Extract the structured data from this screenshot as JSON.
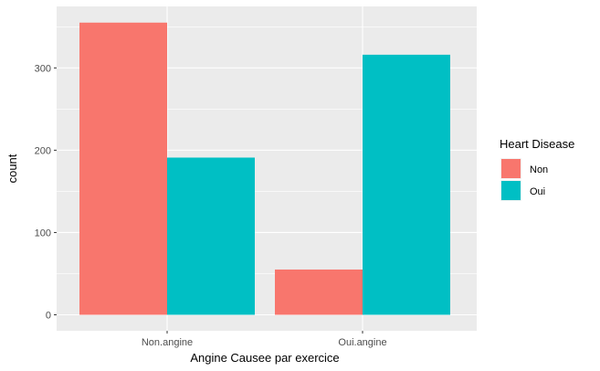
{
  "chart_data": {
    "type": "bar",
    "title": "",
    "xlabel": "Angine Causee par exercice",
    "ylabel": "count",
    "categories": [
      "Non.angine",
      "Oui.angine"
    ],
    "series": [
      {
        "name": "Non",
        "values": [
          355,
          55
        ],
        "color": "#F8766D"
      },
      {
        "name": "Oui",
        "values": [
          191,
          316
        ],
        "color": "#00BFC4"
      }
    ],
    "ylim": [
      0,
      372
    ],
    "yticks": [
      0,
      100,
      200,
      300
    ],
    "grid": true,
    "legend": {
      "title": "Heart Disease",
      "position": "right"
    },
    "panel_color": "#EBEBEB"
  }
}
